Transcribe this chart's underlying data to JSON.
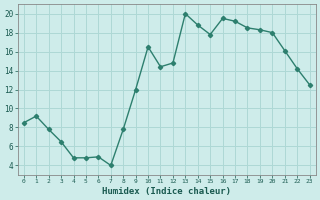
{
  "x": [
    0,
    1,
    2,
    3,
    4,
    5,
    6,
    7,
    8,
    9,
    10,
    11,
    12,
    13,
    14,
    15,
    16,
    17,
    18,
    19,
    20,
    21,
    22,
    23
  ],
  "y": [
    8.5,
    9.2,
    7.8,
    6.5,
    4.8,
    4.8,
    4.9,
    4.0,
    7.8,
    12.0,
    16.5,
    14.4,
    14.8,
    20.0,
    18.8,
    17.8,
    19.5,
    19.2,
    18.5,
    18.3,
    18.0,
    16.1,
    14.2,
    12.5
  ],
  "xlabel": "Humidex (Indice chaleur)",
  "ylabel": "",
  "line_color": "#2d7f6e",
  "bg_color": "#ceecea",
  "grid_color": "#aed8d5",
  "xlim": [
    -0.5,
    23.5
  ],
  "ylim": [
    3.0,
    21.0
  ],
  "yticks": [
    4,
    6,
    8,
    10,
    12,
    14,
    16,
    18,
    20
  ],
  "xticks": [
    0,
    1,
    2,
    3,
    4,
    5,
    6,
    7,
    8,
    9,
    10,
    11,
    12,
    13,
    14,
    15,
    16,
    17,
    18,
    19,
    20,
    21,
    22,
    23
  ],
  "marker": "D",
  "marker_size": 2.2,
  "linewidth": 1.0
}
